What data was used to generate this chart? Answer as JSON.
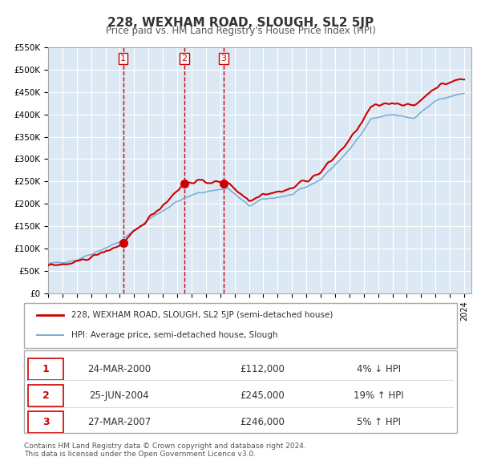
{
  "title": "228, WEXHAM ROAD, SLOUGH, SL2 5JP",
  "subtitle": "Price paid vs. HM Land Registry's House Price Index (HPI)",
  "background_color": "#dce9f5",
  "plot_bg_color": "#dce9f5",
  "fig_bg_color": "#ffffff",
  "ylim": [
    0,
    550000
  ],
  "yticks": [
    0,
    50000,
    100000,
    150000,
    200000,
    250000,
    300000,
    350000,
    400000,
    450000,
    500000,
    550000
  ],
  "ytick_labels": [
    "£0",
    "£50K",
    "£100K",
    "£150K",
    "£200K",
    "£250K",
    "£300K",
    "£350K",
    "£400K",
    "£450K",
    "£500K",
    "£550K"
  ],
  "xmin": 1995.0,
  "xmax": 2024.5,
  "hpi_color": "#7bafd4",
  "price_color": "#cc0000",
  "sale_marker_color": "#cc0000",
  "dashed_line_color": "#cc0000",
  "sale1_x": 2000.23,
  "sale1_y": 112000,
  "sale1_label": "1",
  "sale2_x": 2004.49,
  "sale2_y": 245000,
  "sale2_label": "2",
  "sale3_x": 2007.24,
  "sale3_y": 246000,
  "sale3_label": "3",
  "legend_items": [
    {
      "label": "228, WEXHAM ROAD, SLOUGH, SL2 5JP (semi-detached house)",
      "color": "#cc0000",
      "lw": 2.0
    },
    {
      "label": "HPI: Average price, semi-detached house, Slough",
      "color": "#7bafd4",
      "lw": 1.5
    }
  ],
  "table_rows": [
    {
      "num": "1",
      "date": "24-MAR-2000",
      "price": "£112,000",
      "hpi": "4% ↓ HPI"
    },
    {
      "num": "2",
      "date": "25-JUN-2004",
      "price": "£245,000",
      "hpi": "19% ↑ HPI"
    },
    {
      "num": "3",
      "date": "27-MAR-2007",
      "price": "£246,000",
      "hpi": "5% ↑ HPI"
    }
  ],
  "footnote1": "Contains HM Land Registry data © Crown copyright and database right 2024.",
  "footnote2": "This data is licensed under the Open Government Licence v3.0."
}
